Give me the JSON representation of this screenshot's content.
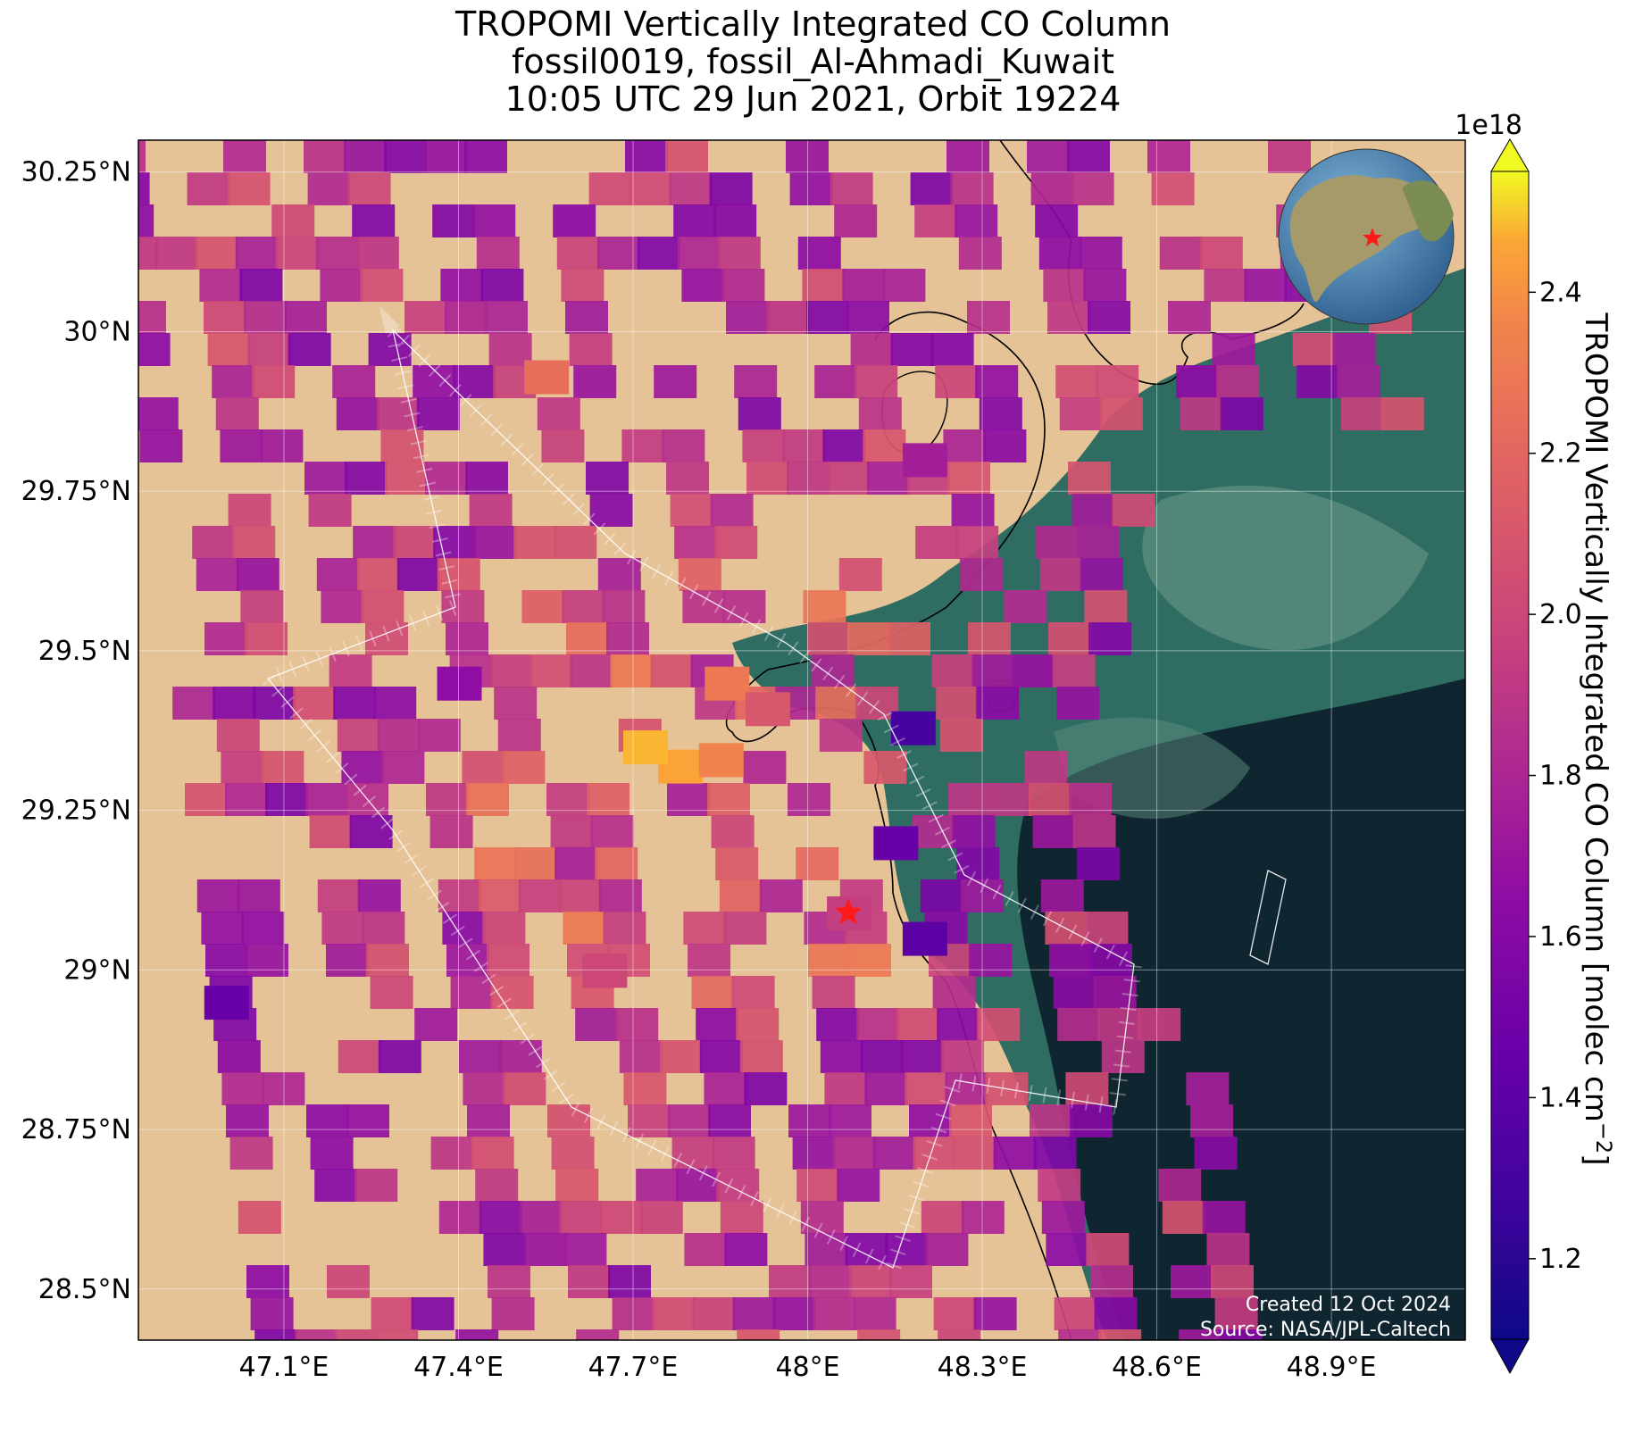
{
  "title": {
    "line1": "TROPOMI Vertically Integrated CO Column",
    "line2": "fossil0019, fossil_Al-Ahmadi_Kuwait",
    "line3": "10:05 UTC 29 Jun 2021, Orbit 19224"
  },
  "map": {
    "lon_range": [
      46.85,
      49.13
    ],
    "lat_range": [
      28.42,
      30.3
    ],
    "lon_ticks": [
      {
        "value": 47.1,
        "label": "47.1°E"
      },
      {
        "value": 47.4,
        "label": "47.4°E"
      },
      {
        "value": 47.7,
        "label": "47.7°E"
      },
      {
        "value": 48.0,
        "label": "48°E"
      },
      {
        "value": 48.3,
        "label": "48.3°E"
      },
      {
        "value": 48.6,
        "label": "48.6°E"
      },
      {
        "value": 48.9,
        "label": "48.9°E"
      }
    ],
    "lat_ticks": [
      {
        "value": 30.25,
        "label": "30.25°N"
      },
      {
        "value": 30.0,
        "label": "30°N"
      },
      {
        "value": 29.75,
        "label": "29.75°N"
      },
      {
        "value": 29.5,
        "label": "29.5°N"
      },
      {
        "value": 29.25,
        "label": "29.25°N"
      },
      {
        "value": 29.0,
        "label": "29°N"
      },
      {
        "value": 28.75,
        "label": "28.75°N"
      },
      {
        "value": 28.5,
        "label": "28.5°N"
      }
    ],
    "grid": true,
    "basemap": "satellite imagery (desert land, Persian Gulf water)",
    "site_marker": {
      "name": "Al-Ahmadi",
      "lon": 48.07,
      "lat": 29.09,
      "symbol": "red-star",
      "color": "#ff1a1a"
    },
    "inset_globe": {
      "position": "top-right",
      "marker": "red-star"
    },
    "credits": {
      "line1": "Created 12 Oct 2024",
      "line2": "Source: NASA/JPL-Caltech"
    }
  },
  "colorbar": {
    "label": "TROPOMI Vertically Integrated CO Column [molec cm",
    "label_exp": "−2",
    "label_close": "]",
    "scale_factor": "1e18",
    "vmin": 1.1,
    "vmax": 2.55,
    "extend": "both",
    "colormap": "plasma",
    "ticks": [
      {
        "value": 1.2,
        "label": "1.2"
      },
      {
        "value": 1.4,
        "label": "1.4"
      },
      {
        "value": 1.6,
        "label": "1.6"
      },
      {
        "value": 1.8,
        "label": "1.8"
      },
      {
        "value": 2.0,
        "label": "2.0"
      },
      {
        "value": 2.2,
        "label": "2.2"
      },
      {
        "value": 2.4,
        "label": "2.4"
      }
    ]
  },
  "chart_data": {
    "type": "heatmap",
    "units": "1e18 molec cm^-2",
    "pixels_note_omitted": false,
    "swath_pixels": [
      {
        "lon": 47.78,
        "lat": 29.32,
        "value": 2.45
      },
      {
        "lon": 47.72,
        "lat": 29.35,
        "value": 2.48
      },
      {
        "lon": 47.85,
        "lat": 29.33,
        "value": 2.35
      },
      {
        "lon": 47.86,
        "lat": 29.45,
        "value": 2.3
      },
      {
        "lon": 47.55,
        "lat": 29.93,
        "value": 2.25
      },
      {
        "lon": 47.93,
        "lat": 29.41,
        "value": 2.1
      },
      {
        "lon": 48.18,
        "lat": 29.38,
        "value": 1.3
      },
      {
        "lon": 48.15,
        "lat": 29.2,
        "value": 1.45
      },
      {
        "lon": 48.2,
        "lat": 29.05,
        "value": 1.4
      },
      {
        "lon": 48.95,
        "lat": 30.25,
        "value": 1.25
      },
      {
        "lon": 47.0,
        "lat": 28.95,
        "value": 1.45
      },
      {
        "lon": 47.4,
        "lat": 29.45,
        "value": 1.65
      },
      {
        "lon": 48.07,
        "lat": 29.09,
        "value": 1.95
      },
      {
        "lon": 47.65,
        "lat": 29.0,
        "value": 2.0
      },
      {
        "lon": 48.2,
        "lat": 29.8,
        "value": 1.75
      }
    ]
  }
}
